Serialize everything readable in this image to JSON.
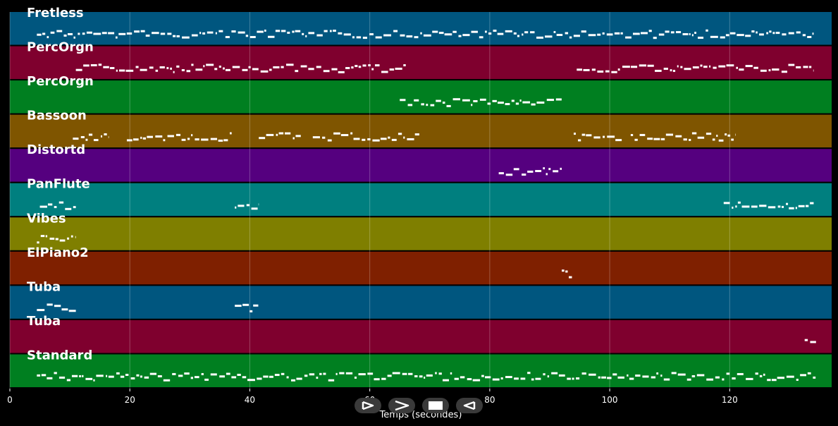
{
  "chart_data": {
    "type": "piano-roll",
    "xlabel": "Temps (secondes)",
    "xlim": [
      0,
      137
    ],
    "x_ticks": [
      0,
      20,
      40,
      60,
      80,
      100,
      120
    ],
    "x_tick_labels": [
      "0",
      "20",
      "40",
      "60",
      "80",
      "100",
      "120"
    ],
    "grid": true,
    "tracks": [
      {
        "label": "Fretless",
        "color": "#00567f",
        "segments": [
          [
            4.5,
            134
          ]
        ]
      },
      {
        "label": "PercOrgn",
        "color": "#7f002e",
        "segments": [
          [
            11,
            66
          ],
          [
            94.5,
            134
          ]
        ]
      },
      {
        "label": "PercOrgn",
        "color": "#007f20",
        "segments": [
          [
            65,
            92
          ]
        ]
      },
      {
        "label": "Bassoon",
        "color": "#7f5500",
        "segments": [
          [
            10.5,
            16.5
          ],
          [
            19.5,
            37
          ],
          [
            41.5,
            48.5
          ],
          [
            50.5,
            68.5
          ],
          [
            94,
            102
          ],
          [
            103.5,
            121
          ]
        ]
      },
      {
        "label": "Distortd",
        "color": "#55007f",
        "segments": [
          [
            81.5,
            92
          ]
        ]
      },
      {
        "label": "PanFlute",
        "color": "#007f7f",
        "segments": [
          [
            5,
            11
          ],
          [
            37.5,
            41.5
          ],
          [
            119,
            134
          ]
        ]
      },
      {
        "label": "Vibes",
        "color": "#7f7f00",
        "segments": [
          [
            4.5,
            11
          ]
        ]
      },
      {
        "label": "ElPiano2",
        "color": "#7f2000",
        "segments": [
          [
            92,
            94
          ]
        ]
      },
      {
        "label": "Tuba",
        "color": "#00567f",
        "segments": [
          [
            4.5,
            11
          ],
          [
            37.5,
            41.5
          ]
        ]
      },
      {
        "label": "Tuba",
        "color": "#7f002e",
        "segments": [
          [
            132.5,
            134.5
          ]
        ]
      },
      {
        "label": "Standard",
        "color": "#007f20",
        "segments": [
          [
            4.5,
            134.5
          ]
        ]
      }
    ]
  },
  "controls": [
    {
      "name": "play-button",
      "icon": "play-icon"
    },
    {
      "name": "forward-button",
      "icon": "forward-icon"
    },
    {
      "name": "stop-button",
      "icon": "stop-icon"
    },
    {
      "name": "rewind-button",
      "icon": "rewind-icon"
    }
  ]
}
